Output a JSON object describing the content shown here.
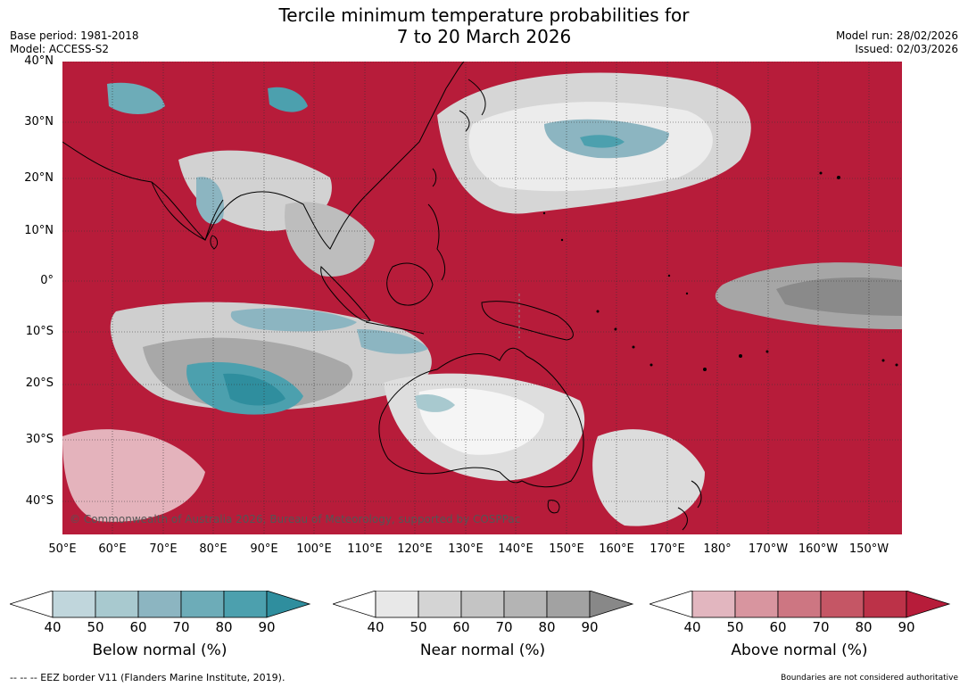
{
  "header": {
    "title_line1": "Tercile minimum temperature probabilities for",
    "title_line2": "7 to 20 March 2026",
    "base_period": "Base period: 1981-2018",
    "model": "Model: ACCESS-S2",
    "model_run": "Model run: 28/02/2026",
    "issued": "Issued: 02/03/2026"
  },
  "map": {
    "lat_labels": [
      "40°N",
      "30°N",
      "20°N",
      "10°N",
      "0°",
      "10°S",
      "20°S",
      "30°S",
      "40°S"
    ],
    "lon_labels": [
      "50°E",
      "60°E",
      "70°E",
      "80°E",
      "90°E",
      "100°E",
      "110°E",
      "120°E",
      "130°E",
      "140°E",
      "150°E",
      "160°E",
      "170°E",
      "180°",
      "170°W",
      "160°W",
      "150°W"
    ],
    "copyright": "© Commonwealth of Australia 2026, Bureau of Meteorology, supported by COSPPac",
    "colors": {
      "above": "#b71c3a",
      "near": "#d9d9d9",
      "below": "#3a9aa8",
      "land_outline": "#000000"
    }
  },
  "colorbars": [
    {
      "title": "Below normal (%)",
      "ticks": [
        "40",
        "50",
        "60",
        "70",
        "80",
        "90"
      ],
      "colors": [
        "#c0d6dc",
        "#a8c9cf",
        "#8cb5c1",
        "#6dacb8",
        "#4ca0ae",
        "#2f8e9e"
      ]
    },
    {
      "title": "Near normal (%)",
      "ticks": [
        "40",
        "50",
        "60",
        "70",
        "80",
        "90"
      ],
      "colors": [
        "#e8e8e8",
        "#d4d4d4",
        "#c4c4c4",
        "#b4b4b4",
        "#a2a2a2",
        "#888888"
      ]
    },
    {
      "title": "Above normal (%)",
      "ticks": [
        "40",
        "50",
        "60",
        "70",
        "80",
        "90"
      ],
      "colors": [
        "#e2b6bf",
        "#d8959f",
        "#cd7682",
        "#c55665",
        "#bc3248",
        "#b71c3a"
      ]
    }
  ],
  "footer": {
    "eez_note": "--  --  -- EEZ border V11 (Flanders Marine Institute, 2019).",
    "disclaimer": "Boundaries are not considered authoritative"
  }
}
